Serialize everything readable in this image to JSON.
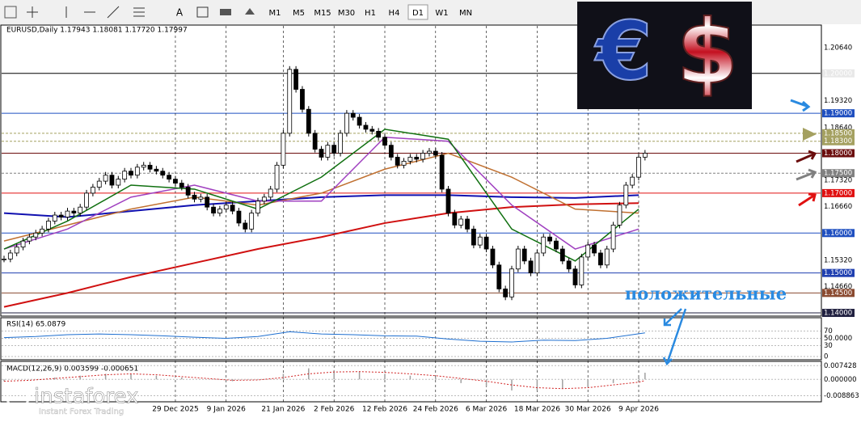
{
  "toolbar": {
    "text_tool": "A",
    "timeframes": [
      "M1",
      "M5",
      "M15",
      "M30",
      "H1",
      "H4",
      "D1",
      "W1",
      "MN"
    ],
    "active": "D1"
  },
  "logo": {
    "euro": "€",
    "dollar": "$"
  },
  "annotation": "положительные",
  "watermark": {
    "brand": "instaforex",
    "slogan": "Instant Forex Trading"
  },
  "chart_data": [
    {
      "type": "candlestick",
      "title": "EURUSD,Daily  1.17943 1.18081 1.17720 1.17997",
      "ylim": [
        1.1394,
        1.2119
      ],
      "yticks": [
        {
          "value": 1.2064,
          "label": "1.20640"
        },
        {
          "value": 1.2,
          "label": "1.20000",
          "color": "#ffffff",
          "box": "#e8e8e8",
          "line": "#000000"
        },
        {
          "value": 1.1932,
          "label": "1.19320"
        },
        {
          "value": 1.19,
          "label": "1.19000",
          "color": "#ffffff",
          "box": "#1f4fc0",
          "line": "#1f4fc0"
        },
        {
          "value": 1.1864,
          "label": "1.18640"
        },
        {
          "value": 1.185,
          "label": "1.18500",
          "color": "#ffffff",
          "box": "#a4a060",
          "line": "#a4a060",
          "dash": true
        },
        {
          "value": 1.183,
          "label": "1.18300",
          "color": "#ffffff",
          "box": "#a4a060",
          "line": "#a4a060",
          "dash": true
        },
        {
          "value": 1.18,
          "label": "1.18000",
          "color": "#ffffff",
          "box": "#6b0d0d",
          "line": "#6b0d0d"
        },
        {
          "value": 1.175,
          "label": "1.17500",
          "color": "#ffffff",
          "box": "#808080",
          "line": "#808080",
          "dash": true
        },
        {
          "value": 1.1732,
          "label": "1.17320"
        },
        {
          "value": 1.17,
          "label": "1.17000",
          "color": "#ffffff",
          "box": "#e01010",
          "line": "#e01010"
        },
        {
          "value": 1.1666,
          "label": "1.16660"
        },
        {
          "value": 1.16,
          "label": "1.16000",
          "color": "#ffffff",
          "box": "#1f4fc0",
          "line": "#1f4fc0"
        },
        {
          "value": 1.1532,
          "label": "1.15320"
        },
        {
          "value": 1.15,
          "label": "1.15000",
          "color": "#ffffff",
          "box": "#1f3fb0",
          "line": "#1f3fb0"
        },
        {
          "value": 1.1466,
          "label": "1.14660"
        },
        {
          "value": 1.145,
          "label": "1.14500",
          "color": "#ffffff",
          "box": "#8a4a30",
          "line": "#8a4a30"
        },
        {
          "value": 1.14,
          "label": "1.14000",
          "color": "#ffffff",
          "box": "#202040",
          "line": "#202040"
        }
      ],
      "categories": [
        null,
        null,
        null,
        null,
        null,
        null,
        null,
        null,
        null,
        null,
        null,
        null,
        null,
        null,
        null,
        null,
        null,
        null,
        null,
        null,
        null,
        null,
        null,
        null,
        null,
        null,
        null,
        "29 Dec 2025",
        null,
        null,
        null,
        null,
        null,
        null,
        null,
        "9 Jan 2026",
        null,
        null,
        null,
        null,
        null,
        null,
        null,
        null,
        "21 Jan 2026",
        null,
        null,
        null,
        null,
        null,
        null,
        null,
        "2 Feb 2026",
        null,
        null,
        null,
        null,
        null,
        null,
        null,
        "12 Feb 2026",
        null,
        null,
        null,
        null,
        null,
        null,
        null,
        "24 Feb 2026",
        null,
        null,
        null,
        null,
        null,
        null,
        null,
        "6 Mar 2026",
        null,
        null,
        null,
        null,
        null,
        null,
        null,
        "18 Mar 2026",
        null,
        null,
        null,
        null,
        null,
        null,
        null,
        "30 Mar 2026",
        null,
        null,
        null,
        null,
        null,
        null,
        null,
        "9 Apr 2026",
        null
      ],
      "closes": [
        1.1535,
        1.155,
        1.1565,
        1.158,
        1.159,
        1.16,
        1.161,
        1.163,
        1.1645,
        1.164,
        1.1655,
        1.165,
        1.1665,
        1.17,
        1.1715,
        1.173,
        1.1745,
        1.172,
        1.1735,
        1.1755,
        1.1745,
        1.1765,
        1.177,
        1.176,
        1.1755,
        1.1745,
        1.1735,
        1.1725,
        1.1715,
        1.1695,
        1.1685,
        1.169,
        1.1665,
        1.165,
        1.166,
        1.167,
        1.1655,
        1.1625,
        1.161,
        1.165,
        1.168,
        1.169,
        1.171,
        1.177,
        1.185,
        1.201,
        1.196,
        1.191,
        1.185,
        1.181,
        1.179,
        1.182,
        1.18,
        1.185,
        1.19,
        1.189,
        1.187,
        1.186,
        1.1855,
        1.184,
        1.182,
        1.179,
        1.177,
        1.178,
        1.179,
        1.1785,
        1.18,
        1.1805,
        1.1795,
        1.171,
        1.165,
        1.162,
        1.1635,
        1.161,
        1.157,
        1.159,
        1.156,
        1.152,
        1.146,
        1.144,
        1.151,
        1.156,
        1.153,
        1.15,
        1.155,
        1.159,
        1.158,
        1.156,
        1.153,
        1.151,
        1.147,
        1.154,
        1.157,
        1.155,
        1.152,
        1.156,
        1.162,
        1.167,
        1.172,
        1.174,
        1.179,
        1.18
      ],
      "series": [
        {
          "color": "#d01010",
          "x": [
            0,
            10,
            20,
            30,
            40,
            50,
            60,
            70,
            80,
            90,
            100
          ],
          "values": [
            1.1415,
            1.145,
            1.149,
            1.1525,
            1.156,
            1.159,
            1.1625,
            1.165,
            1.1665,
            1.1672,
            1.1675
          ]
        },
        {
          "color": "#1010b0",
          "x": [
            0,
            10,
            20,
            30,
            40,
            50,
            60,
            70,
            80,
            90,
            100
          ],
          "values": [
            1.165,
            1.164,
            1.1655,
            1.167,
            1.168,
            1.169,
            1.1695,
            1.1695,
            1.169,
            1.1688,
            1.1695
          ]
        },
        {
          "color": "#c07030",
          "x": [
            0,
            10,
            20,
            30,
            40,
            50,
            60,
            70,
            80,
            90,
            100
          ],
          "values": [
            1.158,
            1.162,
            1.166,
            1.169,
            1.167,
            1.17,
            1.176,
            1.18,
            1.174,
            1.166,
            1.165
          ]
        },
        {
          "color": "#a040c0",
          "x": [
            0,
            10,
            20,
            30,
            40,
            50,
            60,
            70,
            80,
            90,
            100
          ],
          "values": [
            1.156,
            1.161,
            1.169,
            1.172,
            1.168,
            1.168,
            1.184,
            1.183,
            1.167,
            1.156,
            1.161
          ]
        },
        {
          "color": "#107010",
          "x": [
            0,
            10,
            20,
            30,
            40,
            50,
            60,
            70,
            80,
            90,
            100
          ],
          "values": [
            1.156,
            1.163,
            1.172,
            1.171,
            1.166,
            1.174,
            1.186,
            1.1835,
            1.161,
            1.153,
            1.166
          ]
        }
      ]
    },
    {
      "type": "line",
      "title": "RSI(14) 65.0879",
      "color": "#1e6fd0",
      "ylim": [
        0,
        100
      ],
      "yticks": [
        70,
        {
          "value": 50,
          "label": "50.0000"
        },
        30,
        0
      ],
      "x": [
        0,
        5,
        10,
        15,
        20,
        25,
        30,
        35,
        40,
        45,
        50,
        55,
        60,
        65,
        70,
        75,
        80,
        85,
        90,
        95,
        101
      ],
      "values": [
        52,
        55,
        60,
        62,
        60,
        57,
        53,
        50,
        55,
        68,
        62,
        60,
        57,
        56,
        48,
        42,
        40,
        45,
        44,
        50,
        65.0879
      ]
    },
    {
      "type": "macd",
      "title": "MACD(12,26,9) 0.003599 -0.000651",
      "ylim": [
        -0.0095,
        0.008
      ],
      "yticks": [
        0.007428,
        {
          "value": 0,
          "label": "0.000000"
        },
        -0.008863
      ],
      "x": [
        0,
        4,
        8,
        12,
        16,
        20,
        24,
        28,
        32,
        36,
        40,
        44,
        48,
        52,
        56,
        60,
        64,
        68,
        72,
        76,
        80,
        84,
        88,
        92,
        96,
        100,
        101
      ],
      "values": [
        -0.001,
        0,
        0.001,
        0.002,
        0.003,
        0.003,
        0.002,
        0.001,
        0,
        -0.001,
        0,
        0.003,
        0.006,
        0.005,
        0.004,
        0.003,
        0.002,
        0.001,
        -0.002,
        -0.004,
        -0.006,
        -0.006,
        -0.005,
        -0.004,
        -0.002,
        0.001,
        0.003599
      ],
      "signal": [
        -0.001,
        -0.0005,
        0.0005,
        0.0015,
        0.0025,
        0.003,
        0.0025,
        0.0015,
        0.0005,
        -0.0005,
        -0.0003,
        0.001,
        0.003,
        0.004,
        0.0042,
        0.0038,
        0.003,
        0.002,
        0.0005,
        -0.001,
        -0.003,
        -0.0045,
        -0.005,
        -0.0045,
        -0.003,
        -0.0015,
        -0.000651
      ],
      "color": "#a0a0a0",
      "signal_color": "#d02020"
    }
  ]
}
